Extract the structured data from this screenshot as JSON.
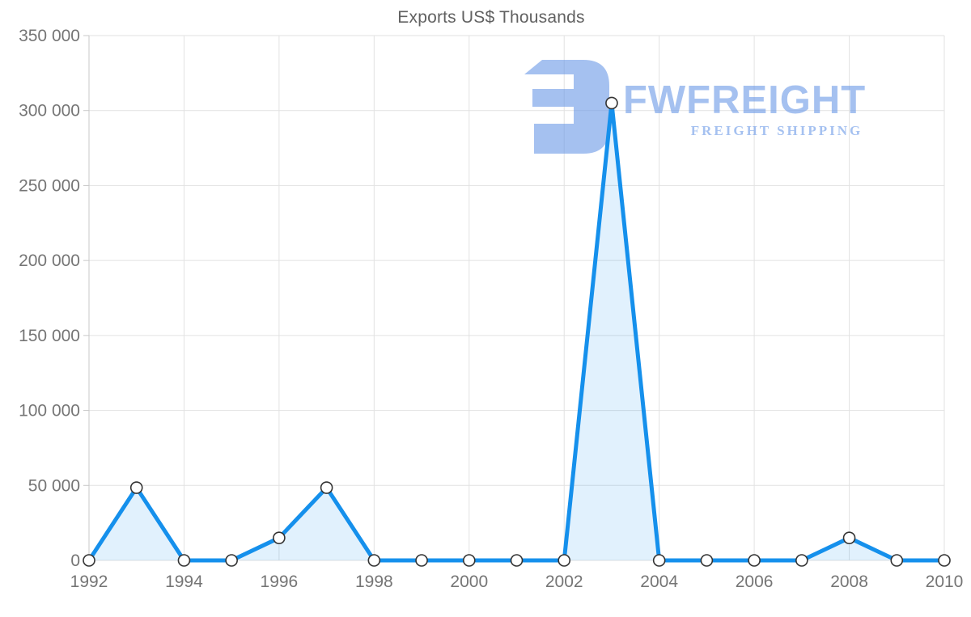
{
  "chart_data": {
    "type": "area",
    "title": "Exports US$ Thousands",
    "x": [
      1992,
      1993,
      1994,
      1995,
      1996,
      1997,
      1998,
      1999,
      2000,
      2001,
      2002,
      2003,
      2004,
      2005,
      2006,
      2007,
      2008,
      2009,
      2010
    ],
    "values": [
      0,
      48500,
      0,
      0,
      15000,
      48500,
      0,
      0,
      0,
      0,
      0,
      305000,
      0,
      0,
      0,
      0,
      15000,
      0,
      0
    ],
    "xlabel": "",
    "ylabel": "",
    "xlim": [
      1992,
      2010
    ],
    "ylim": [
      0,
      350000
    ],
    "y_ticks": [
      0,
      50000,
      100000,
      150000,
      200000,
      250000,
      300000,
      350000
    ],
    "y_tick_labels": [
      "0",
      "50 000",
      "100 000",
      "150 000",
      "200 000",
      "250 000",
      "300 000",
      "350 000"
    ],
    "x_ticks": [
      1992,
      1994,
      1996,
      1998,
      2000,
      2002,
      2004,
      2006,
      2008,
      2010
    ],
    "x_tick_labels": [
      "1992",
      "1994",
      "1996",
      "1998",
      "2000",
      "2002",
      "2004",
      "2006",
      "2008",
      "2010"
    ],
    "grid": true,
    "legend": false,
    "markers": true,
    "colors": {
      "line": "#1590EC",
      "area_fill": "rgba(21,144,236,0.13)",
      "marker_fill": "#ffffff",
      "marker_stroke": "#333333",
      "gridline": "#e2e2e2",
      "axis_line": "#c8c8c8",
      "tick_text": "#757575",
      "title_text": "#616161"
    }
  },
  "watermark": {
    "brand": "FWFREIGHT",
    "tagline": "FREIGHT SHIPPING",
    "color": "#6f9ce8",
    "logo": "fwfreight-logo"
  }
}
